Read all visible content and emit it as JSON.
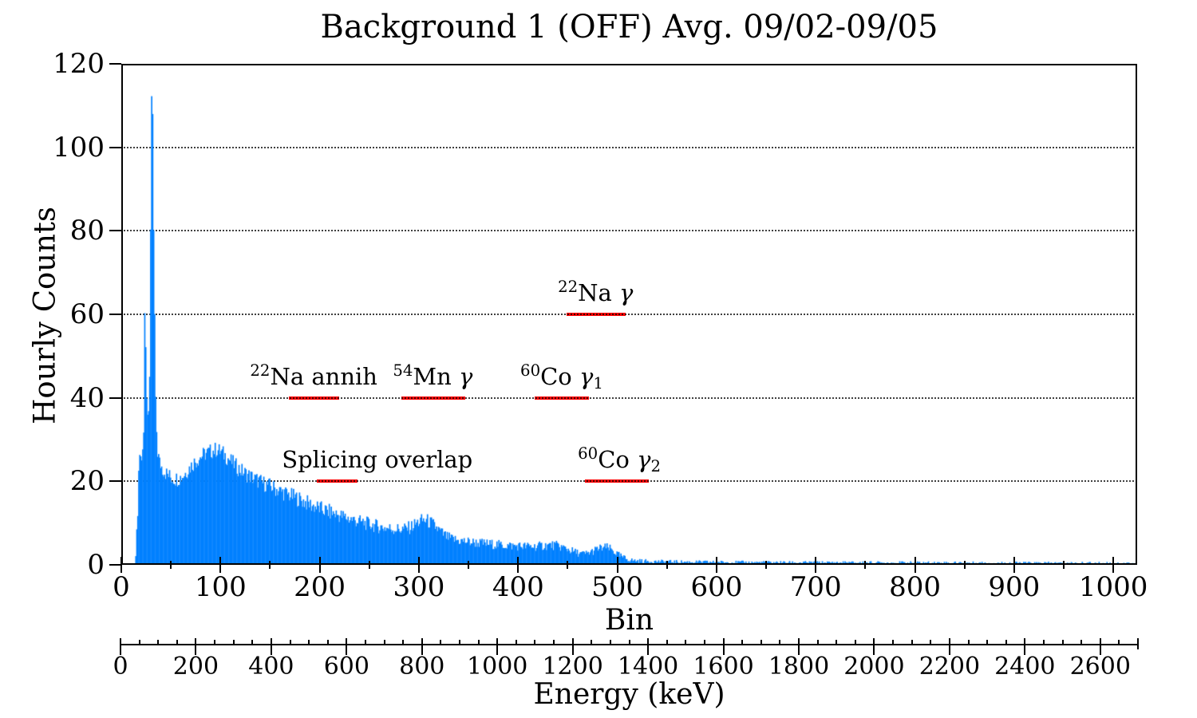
{
  "title": "Background 1 (OFF) Avg. 09/02-09/05",
  "chart_data": {
    "type": "area",
    "title": "Background 1 (OFF) Avg. 09/02-09/05",
    "ylabel": "Hourly Counts",
    "xlabel": "Bin",
    "x2label": "Energy (keV)",
    "xlim": [
      0,
      1024
    ],
    "ylim": [
      0,
      120
    ],
    "grid": "dotted horizontal at 20,40,60,80,100",
    "legend": "none",
    "series_color": "#0080ff",
    "annotation_color": "#ff0000",
    "y_ticks": [
      0,
      20,
      40,
      60,
      80,
      100,
      120
    ],
    "gridlines_y": [
      20,
      40,
      60,
      80,
      100
    ],
    "bin_tick_labels": [
      0,
      100,
      200,
      300,
      400,
      500,
      600,
      700,
      800,
      900,
      1000
    ],
    "bin_minor_step": 50,
    "energy_tick_labels": [
      0,
      200,
      400,
      600,
      800,
      1000,
      1200,
      1400,
      1600,
      1800,
      2000,
      2200,
      2400,
      2600
    ],
    "energy_axis_max": 2700,
    "energy_minor_step": 50,
    "kev_per_bin": 2.637,
    "points": [
      [
        0,
        0
      ],
      [
        13,
        0
      ],
      [
        14,
        2
      ],
      [
        15,
        8
      ],
      [
        16,
        12
      ],
      [
        17,
        24
      ],
      [
        18,
        27
      ],
      [
        19,
        26
      ],
      [
        20,
        27
      ],
      [
        21,
        29
      ],
      [
        22,
        32
      ],
      [
        23,
        60
      ],
      [
        24,
        52
      ],
      [
        25,
        40
      ],
      [
        26,
        36
      ],
      [
        27,
        37
      ],
      [
        28,
        45
      ],
      [
        29,
        80
      ],
      [
        30,
        112
      ],
      [
        31,
        108
      ],
      [
        32,
        80
      ],
      [
        33,
        60
      ],
      [
        34,
        40
      ],
      [
        35,
        32
      ],
      [
        36,
        27
      ],
      [
        38,
        24.5
      ],
      [
        41,
        23
      ],
      [
        45,
        21.8
      ],
      [
        50,
        20.8
      ],
      [
        55,
        20.6
      ],
      [
        60,
        21
      ],
      [
        64,
        22
      ],
      [
        68,
        23.2
      ],
      [
        72,
        24.3
      ],
      [
        76,
        25.2
      ],
      [
        80,
        26
      ],
      [
        84,
        26.6
      ],
      [
        88,
        27
      ],
      [
        92,
        27.4
      ],
      [
        96,
        27.6
      ],
      [
        100,
        27
      ],
      [
        104,
        26.2
      ],
      [
        108,
        25.3
      ],
      [
        112,
        24.3
      ],
      [
        116,
        23.4
      ],
      [
        120,
        22.6
      ],
      [
        125,
        21.8
      ],
      [
        130,
        21.1
      ],
      [
        135,
        20.4
      ],
      [
        140,
        19.8
      ],
      [
        145,
        19.3
      ],
      [
        150,
        18.8
      ],
      [
        155,
        18.2
      ],
      [
        160,
        17.6
      ],
      [
        165,
        17.1
      ],
      [
        170,
        16.6
      ],
      [
        175,
        16.1
      ],
      [
        180,
        15.6
      ],
      [
        185,
        15
      ],
      [
        190,
        14.4
      ],
      [
        195,
        13.9
      ],
      [
        200,
        13.4
      ],
      [
        205,
        13
      ],
      [
        210,
        12.6
      ],
      [
        215,
        12.2
      ],
      [
        220,
        11.8
      ],
      [
        225,
        11.4
      ],
      [
        230,
        11
      ],
      [
        235,
        10.7
      ],
      [
        240,
        10.3
      ],
      [
        245,
        10
      ],
      [
        250,
        9.7
      ],
      [
        255,
        9.4
      ],
      [
        260,
        9.1
      ],
      [
        265,
        8.9
      ],
      [
        270,
        8.7
      ],
      [
        275,
        8.6
      ],
      [
        280,
        8.5
      ],
      [
        285,
        8.6
      ],
      [
        290,
        8.9
      ],
      [
        295,
        9.6
      ],
      [
        300,
        10.4
      ],
      [
        304,
        10.7
      ],
      [
        308,
        10.5
      ],
      [
        312,
        9.9
      ],
      [
        316,
        9.1
      ],
      [
        320,
        8.2
      ],
      [
        324,
        7.3
      ],
      [
        328,
        6.6
      ],
      [
        332,
        6.2
      ],
      [
        336,
        6
      ],
      [
        340,
        5.8
      ],
      [
        350,
        5.5
      ],
      [
        360,
        5.2
      ],
      [
        370,
        5
      ],
      [
        380,
        4.8
      ],
      [
        390,
        4.6
      ],
      [
        400,
        4.5
      ],
      [
        410,
        4.4
      ],
      [
        418,
        4.4
      ],
      [
        426,
        4.6
      ],
      [
        432,
        4.7
      ],
      [
        438,
        4.6
      ],
      [
        444,
        4.2
      ],
      [
        450,
        3.7
      ],
      [
        456,
        3.1
      ],
      [
        462,
        2.7
      ],
      [
        466,
        2.6
      ],
      [
        470,
        2.8
      ],
      [
        475,
        3.3
      ],
      [
        480,
        3.8
      ],
      [
        485,
        4.1
      ],
      [
        489,
        4.1
      ],
      [
        493,
        3.7
      ],
      [
        497,
        3
      ],
      [
        501,
        2.3
      ],
      [
        505,
        1.8
      ],
      [
        510,
        1.3
      ],
      [
        515,
        1.05
      ],
      [
        520,
        0.95
      ],
      [
        530,
        0.85
      ],
      [
        545,
        0.75
      ],
      [
        560,
        0.7
      ],
      [
        580,
        0.65
      ],
      [
        610,
        0.6
      ],
      [
        650,
        0.55
      ],
      [
        700,
        0.52
      ],
      [
        750,
        0.5
      ],
      [
        800,
        0.48
      ],
      [
        850,
        0.45
      ],
      [
        900,
        0.42
      ],
      [
        950,
        0.4
      ],
      [
        1000,
        0.38
      ],
      [
        1023,
        0.35
      ]
    ],
    "noise": {
      "seed": 7,
      "factor": 0.55,
      "cap": 2.0,
      "quiet_bins": [
        23,
        34
      ]
    },
    "annotations": [
      {
        "name": "na22-gamma",
        "segments": [
          {
            "t": "sup",
            "v": "22"
          },
          {
            "t": "txt",
            "v": "Na "
          },
          {
            "t": "it",
            "v": "γ"
          }
        ],
        "line": {
          "bin0": 449,
          "bin1": 508,
          "y": 60
        },
        "label_bin": 478
      },
      {
        "name": "na22-annih",
        "segments": [
          {
            "t": "sup",
            "v": "22"
          },
          {
            "t": "txt",
            "v": "Na annih"
          }
        ],
        "line": {
          "bin0": 169,
          "bin1": 220,
          "y": 40
        },
        "label_bin": 194
      },
      {
        "name": "mn54-gamma",
        "segments": [
          {
            "t": "sup",
            "v": "54"
          },
          {
            "t": "txt",
            "v": "Mn "
          },
          {
            "t": "it",
            "v": "γ"
          }
        ],
        "line": {
          "bin0": 282,
          "bin1": 347,
          "y": 40
        },
        "label_bin": 314
      },
      {
        "name": "co60-gamma1",
        "segments": [
          {
            "t": "sup",
            "v": "60"
          },
          {
            "t": "txt",
            "v": "Co "
          },
          {
            "t": "it",
            "v": "γ"
          },
          {
            "t": "isub",
            "v": "1"
          }
        ],
        "line": {
          "bin0": 417,
          "bin1": 471,
          "y": 40
        },
        "label_bin": 444
      },
      {
        "name": "splicing-overlap",
        "segments": [
          {
            "t": "txt",
            "v": "Splicing overlap"
          }
        ],
        "line": {
          "bin0": 197,
          "bin1": 238,
          "y": 20
        },
        "label_bin": 258
      },
      {
        "name": "co60-gamma2",
        "segments": [
          {
            "t": "sup",
            "v": "60"
          },
          {
            "t": "txt",
            "v": "Co "
          },
          {
            "t": "it",
            "v": "γ"
          },
          {
            "t": "isub",
            "v": "2"
          }
        ],
        "line": {
          "bin0": 467,
          "bin1": 532,
          "y": 20
        },
        "label_bin": 502
      }
    ]
  }
}
